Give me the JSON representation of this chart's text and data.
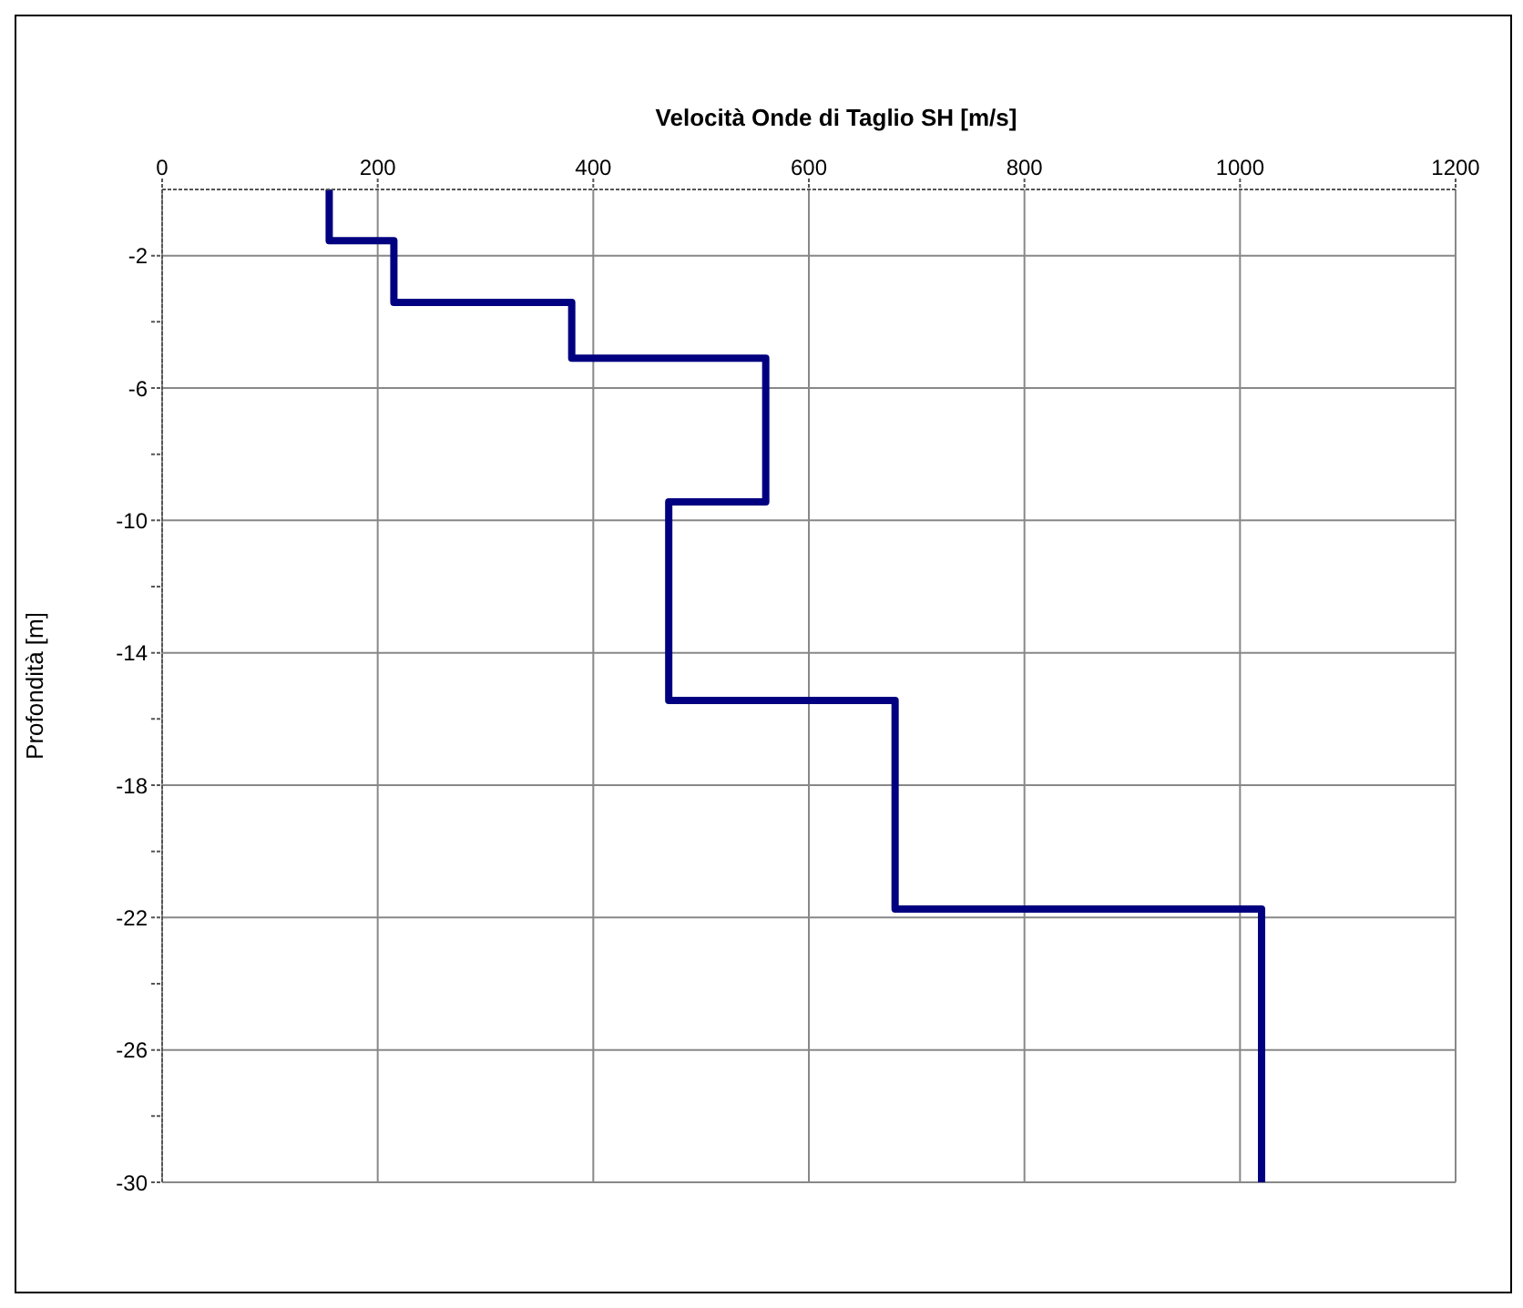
{
  "chart_data": {
    "type": "line",
    "title": "Velocità Onde di Taglio SH [m/s]",
    "ylabel": "Profondità [m]",
    "x": [
      155,
      155,
      215,
      215,
      380,
      380,
      560,
      560,
      470,
      470,
      680,
      680,
      1020,
      1020
    ],
    "series": [
      {
        "color": "#000080",
        "values": [
          0,
          -1.55,
          -1.55,
          -3.41,
          -3.41,
          -5.1,
          -5.1,
          -9.44,
          -9.44,
          -15.44,
          -15.44,
          -21.74,
          -21.74,
          -30
        ]
      }
    ],
    "xlim": [
      0,
      1200
    ],
    "xticks": [
      0,
      200,
      400,
      600,
      800,
      1000,
      1200
    ],
    "ylim": [
      -30,
      0
    ],
    "yticks": [
      {
        "value": -2,
        "label": "-2"
      },
      {
        "value": -4,
        "label": null
      },
      {
        "value": -6,
        "label": "-6"
      },
      {
        "value": -8,
        "label": null
      },
      {
        "value": -10,
        "label": "-10"
      },
      {
        "value": -12,
        "label": null
      },
      {
        "value": -14,
        "label": "-14"
      },
      {
        "value": -16,
        "label": null
      },
      {
        "value": -18,
        "label": "-18"
      },
      {
        "value": -20,
        "label": null
      },
      {
        "value": -22,
        "label": "-22"
      },
      {
        "value": -24,
        "label": null
      },
      {
        "value": -26,
        "label": "-26"
      },
      {
        "value": -28,
        "label": null
      },
      {
        "value": -30,
        "label": "-30"
      }
    ],
    "grid": true,
    "marker": "none",
    "line_style": "solid"
  }
}
